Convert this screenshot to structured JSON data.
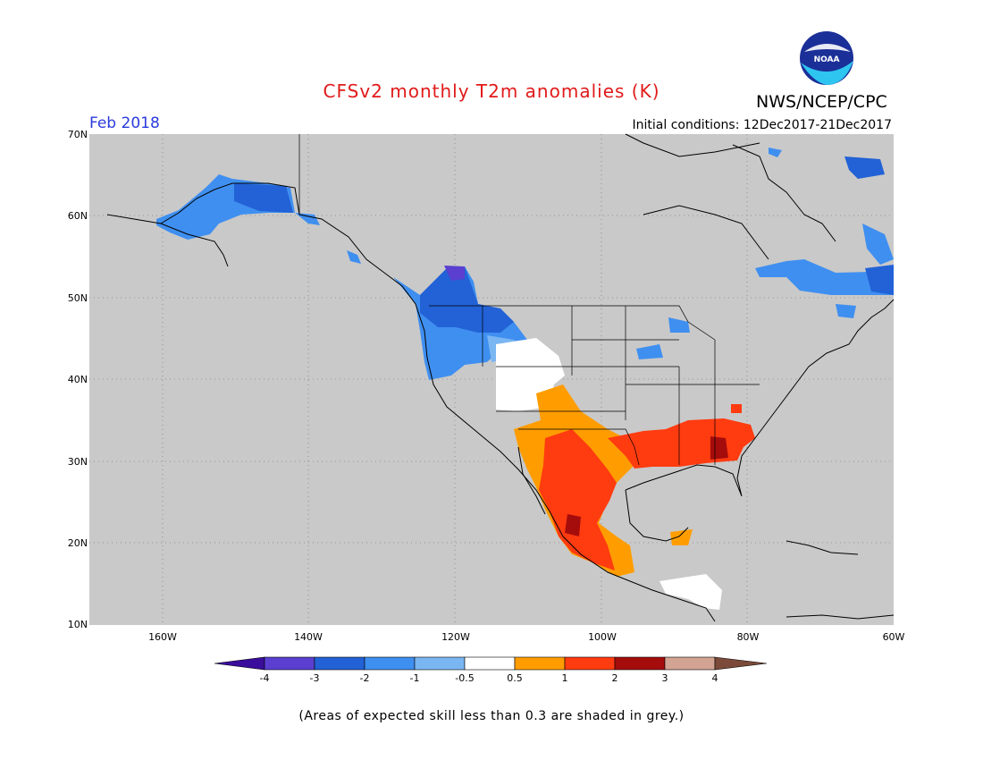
{
  "title": "CFSv2 monthly T2m anomalies (K)",
  "organization": "NWS/NCEP/CPC",
  "logo_text": "NOAA",
  "month": "Feb 2018",
  "initial_conditions": "Initial conditions: 12Dec2017-21Dec2017",
  "lat_labels": [
    "70N",
    "60N",
    "50N",
    "40N",
    "30N",
    "20N",
    "10N"
  ],
  "lon_labels": [
    "160W",
    "140W",
    "120W",
    "100W",
    "80W",
    "60W"
  ],
  "colorbar": {
    "tick_labels": [
      "-4",
      "-3",
      "-2",
      "-1",
      "-0.5",
      "0.5",
      "1",
      "2",
      "3",
      "4"
    ],
    "colors": [
      "#3a0d9c",
      "#5a3fd0",
      "#2262d6",
      "#3f8ff0",
      "#7ab6f2",
      "#ffffff",
      "#ff9d00",
      "#ff3b10",
      "#a50c0c",
      "#d3a494",
      "#7b4a3a"
    ]
  },
  "footer_note": "(Areas of expected skill less than 0.3 are shaded in grey.)",
  "map_colors": {
    "background": "#c9c9c9",
    "coast": "#000000"
  }
}
